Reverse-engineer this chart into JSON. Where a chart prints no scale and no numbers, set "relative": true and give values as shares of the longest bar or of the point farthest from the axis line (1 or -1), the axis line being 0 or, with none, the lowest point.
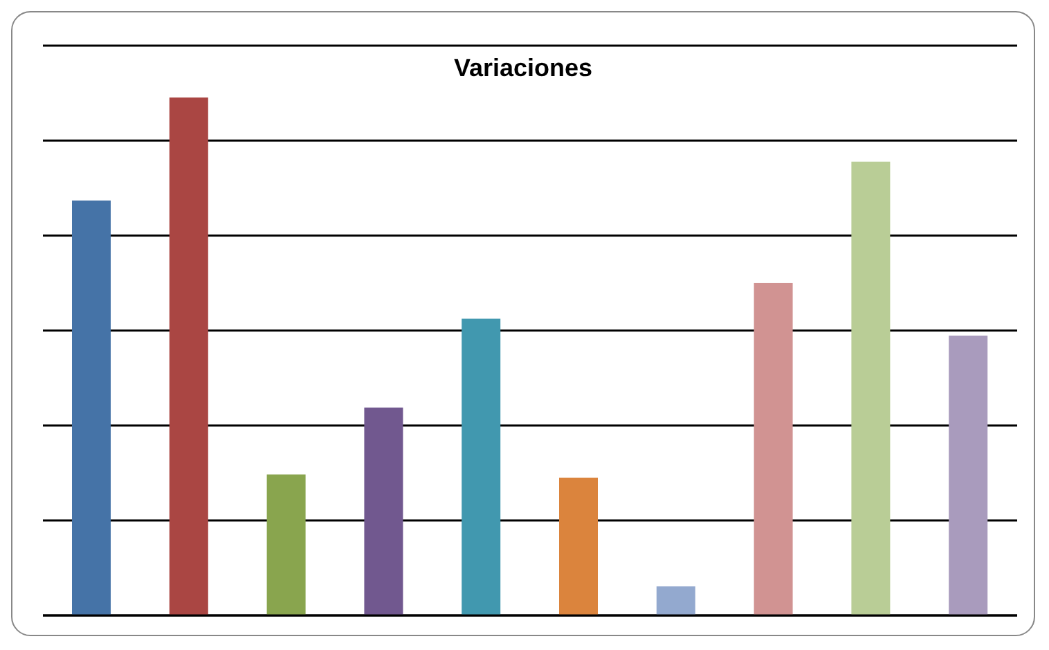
{
  "chart_data": {
    "type": "bar",
    "title": "Variaciones",
    "relative": true,
    "grid": "y",
    "categories": [
      null,
      null,
      null,
      null,
      null,
      null,
      null,
      null,
      null,
      null
    ],
    "values": [
      0.801,
      1,
      0.272,
      0.401,
      0.573,
      0.266,
      0.056,
      0.642,
      0.876,
      0.54
    ],
    "colors": [
      "#4573a7",
      "#aa4643",
      "#89a54e",
      "#71588f",
      "#4198af",
      "#db843d",
      "#93a9cf",
      "#d19392",
      "#b9cd96",
      "#a99bbd"
    ]
  }
}
